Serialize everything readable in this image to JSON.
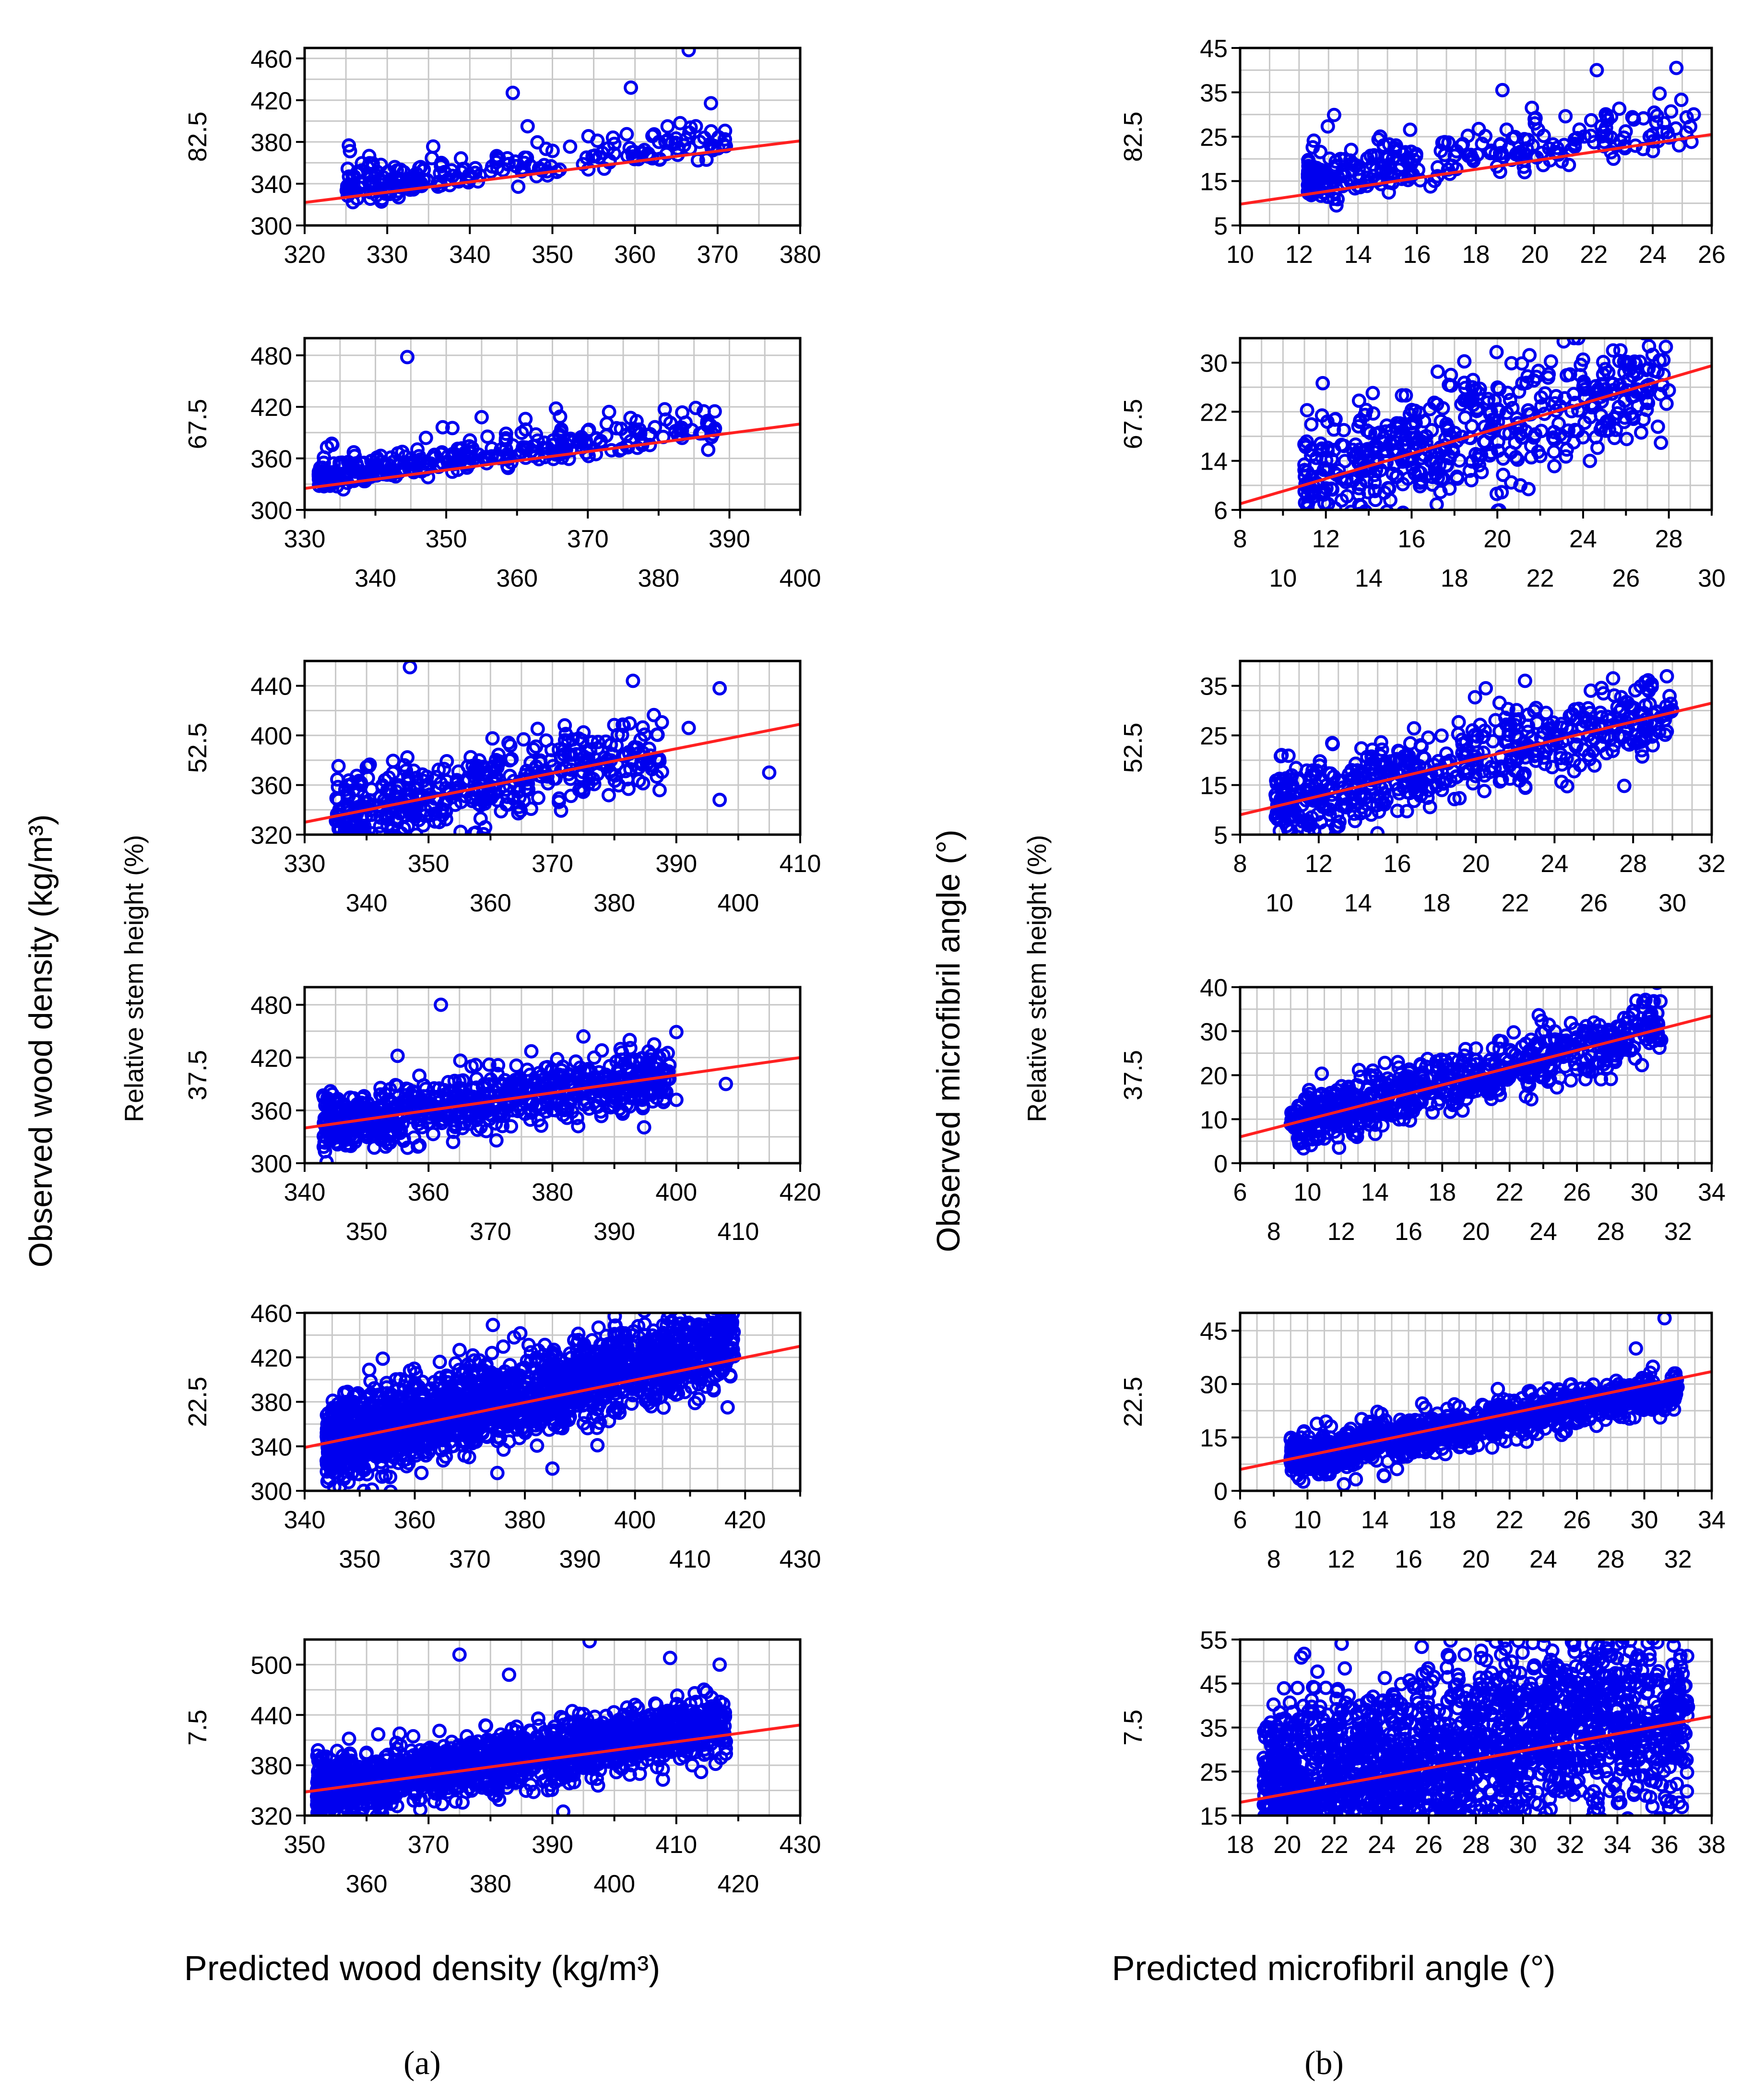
{
  "figure": {
    "panel_a_label": "(a)",
    "panel_b_label": "(b)",
    "y_title_a": "Observed wood density (kg/m³)",
    "y_title_b": "Observed microfibril angle (°)",
    "height_title_a": "Relative stem height (%)",
    "height_title_b": "Relative stem height (%)",
    "x_title_a": "Predicted wood density (kg/m³)",
    "x_title_b": "Predicted microfibril angle (°)"
  },
  "colors": {
    "points": "#0000ee",
    "fit_line": "#ff2020",
    "grid": "#c8c8c8"
  },
  "chart_data": [
    {
      "id": "a-82.5",
      "type": "scatter",
      "panel": "a",
      "stem_height": "82.5",
      "title": "",
      "xlabel": "Predicted wood density (kg/m3)",
      "ylabel": "Observed wood density (kg/m3)",
      "xlim": [
        320,
        380
      ],
      "ylim": [
        300,
        470
      ],
      "xticks_top": [
        320,
        330,
        340,
        350,
        360,
        370,
        380
      ],
      "xticks_bottom": [],
      "yticks": [
        300,
        340,
        380,
        420,
        460
      ],
      "fit_line": [
        [
          320,
          322
        ],
        [
          380,
          381
        ]
      ],
      "cloud": {
        "n": 230,
        "x": [
          325,
          371
        ],
        "mode": "sparse",
        "spread": 20,
        "seed": 11
      },
      "outliers": [
        [
          366.5,
          468
        ],
        [
          359.5,
          432
        ],
        [
          345.2,
          427
        ],
        [
          371,
          376
        ],
        [
          364,
          382
        ],
        [
          347,
          395
        ]
      ]
    },
    {
      "id": "b-82.5",
      "type": "scatter",
      "panel": "b",
      "stem_height": "82.5",
      "title": "",
      "xlabel": "Predicted microfibril angle (o)",
      "ylabel": "Observed microfibril angle (o)",
      "xlim": [
        10,
        26
      ],
      "ylim": [
        5,
        45
      ],
      "xticks_top": [
        10,
        12,
        14,
        16,
        18,
        20,
        22,
        24,
        26
      ],
      "xticks_bottom": [],
      "yticks": [
        5,
        15,
        25,
        35,
        45
      ],
      "fit_line": [
        [
          10,
          9.8
        ],
        [
          26,
          25.5
        ]
      ],
      "cloud": {
        "n": 280,
        "x": [
          12.3,
          25.5
        ],
        "mode": "sparse",
        "spread": 6,
        "seed": 12
      },
      "outliers": [
        [
          24.8,
          40.5
        ],
        [
          22.1,
          40
        ],
        [
          19.9,
          31.5
        ],
        [
          20,
          28
        ],
        [
          18.9,
          35.5
        ]
      ]
    },
    {
      "id": "a-67.5",
      "type": "scatter",
      "panel": "a",
      "stem_height": "67.5",
      "title": "",
      "xlabel": "Predicted wood density (kg/m3)",
      "ylabel": "Observed wood density (kg/m3)",
      "xlim": [
        330,
        400
      ],
      "ylim": [
        300,
        500
      ],
      "xticks_top": [
        330,
        350,
        370,
        390
      ],
      "xticks_bottom": [
        340,
        360,
        380,
        400
      ],
      "yticks": [
        300,
        360,
        420,
        480
      ],
      "fit_line": [
        [
          330,
          325
        ],
        [
          400,
          400
        ]
      ],
      "cloud": {
        "n": 330,
        "x": [
          332,
          388
        ],
        "mode": "sparse",
        "spread": 20,
        "seed": 21
      },
      "outliers": [
        [
          344.5,
          478
        ],
        [
          365.5,
          418
        ],
        [
          355,
          408
        ],
        [
          373,
          414
        ],
        [
          387,
          370
        ]
      ]
    },
    {
      "id": "b-67.5",
      "type": "scatter",
      "panel": "b",
      "stem_height": "67.5",
      "title": "",
      "xlabel": "Predicted microfibril angle (o)",
      "ylabel": "Observed microfibril angle (o)",
      "xlim": [
        8,
        30
      ],
      "ylim": [
        6,
        34
      ],
      "xticks_top": [
        8,
        12,
        16,
        20,
        24,
        28
      ],
      "xticks_bottom": [
        10,
        14,
        18,
        22,
        26,
        30
      ],
      "yticks": [
        6,
        14,
        22,
        30
      ],
      "fit_line": [
        [
          8,
          7
        ],
        [
          30,
          29.5
        ]
      ],
      "cloud": {
        "n": 520,
        "x": [
          11,
          28
        ],
        "mode": "medium",
        "spread": 7,
        "seed": 22
      },
      "outliers": [
        [
          25.4,
          32
        ],
        [
          24,
          30.5
        ],
        [
          22.5,
          30.2
        ],
        [
          27,
          26
        ],
        [
          28,
          25.5
        ]
      ]
    },
    {
      "id": "a-52.5",
      "type": "scatter",
      "panel": "a",
      "stem_height": "52.5",
      "title": "",
      "xlabel": "Predicted wood density (kg/m3)",
      "ylabel": "Observed wood density (kg/m3)",
      "xlim": [
        330,
        410
      ],
      "ylim": [
        320,
        460
      ],
      "xticks_top": [
        330,
        350,
        370,
        390,
        410
      ],
      "xticks_bottom": [
        340,
        360,
        380,
        400
      ],
      "yticks": [
        320,
        360,
        400,
        440
      ],
      "fit_line": [
        [
          330,
          330
        ],
        [
          410,
          409
        ]
      ],
      "cloud": {
        "n": 440,
        "x": [
          335,
          388
        ],
        "mode": "medium",
        "spread": 24,
        "seed": 31
      },
      "outliers": [
        [
          347,
          455
        ],
        [
          383,
          444
        ],
        [
          397,
          438
        ],
        [
          405,
          370
        ],
        [
          397,
          348
        ],
        [
          392,
          406
        ]
      ]
    },
    {
      "id": "b-52.5",
      "type": "scatter",
      "panel": "b",
      "stem_height": "52.5",
      "title": "",
      "xlabel": "Predicted microfibril angle (o)",
      "ylabel": "Observed microfibril angle (o)",
      "xlim": [
        8,
        32
      ],
      "ylim": [
        5,
        40
      ],
      "xticks_top": [
        8,
        12,
        16,
        20,
        24,
        28,
        32
      ],
      "xticks_bottom": [
        10,
        14,
        18,
        22,
        26,
        30
      ],
      "yticks": [
        5,
        15,
        25,
        35
      ],
      "fit_line": [
        [
          8,
          9
        ],
        [
          32,
          31.5
        ]
      ],
      "cloud": {
        "n": 540,
        "x": [
          9.8,
          30
        ],
        "mode": "medium",
        "spread": 6,
        "seed": 32
      },
      "outliers": [
        [
          22.5,
          36
        ],
        [
          20.5,
          34.5
        ],
        [
          28.8,
          34
        ],
        [
          29,
          23
        ]
      ]
    },
    {
      "id": "a-37.5",
      "type": "scatter",
      "panel": "a",
      "stem_height": "37.5",
      "title": "",
      "xlabel": "Predicted wood density (kg/m3)",
      "ylabel": "Observed wood density (kg/m3)",
      "xlim": [
        340,
        420
      ],
      "ylim": [
        300,
        500
      ],
      "xticks_top": [
        340,
        360,
        380,
        400,
        420
      ],
      "xticks_bottom": [
        350,
        370,
        390,
        410
      ],
      "yticks": [
        300,
        360,
        420,
        480
      ],
      "fit_line": [
        [
          340,
          340
        ],
        [
          420,
          420
        ]
      ],
      "cloud": {
        "n": 720,
        "x": [
          343,
          399
        ],
        "mode": "dense",
        "spread": 24,
        "seed": 41
      },
      "outliers": [
        [
          362,
          480
        ],
        [
          385,
          444
        ],
        [
          400,
          449
        ],
        [
          408,
          390
        ],
        [
          400,
          372
        ],
        [
          355,
          422
        ]
      ]
    },
    {
      "id": "b-37.5",
      "type": "scatter",
      "panel": "b",
      "stem_height": "37.5",
      "title": "",
      "xlabel": "Predicted microfibril angle (o)",
      "ylabel": "Observed microfibril angle (o)",
      "xlim": [
        6,
        34
      ],
      "ylim": [
        0,
        40
      ],
      "xticks_top": [
        6,
        10,
        14,
        18,
        22,
        26,
        30,
        34
      ],
      "xticks_bottom": [
        8,
        12,
        16,
        20,
        24,
        28,
        32
      ],
      "yticks": [
        0,
        10,
        20,
        30,
        40
      ],
      "fit_line": [
        [
          6,
          6
        ],
        [
          34,
          33.5
        ]
      ],
      "cloud": {
        "n": 700,
        "x": [
          9,
          31
        ],
        "mode": "dense",
        "spread": 5,
        "seed": 42
      },
      "outliers": [
        [
          30.5,
          30
        ],
        [
          29,
          28.5
        ],
        [
          31,
          28
        ],
        [
          27.5,
          28.5
        ]
      ]
    },
    {
      "id": "a-22.5",
      "type": "scatter",
      "panel": "a",
      "stem_height": "22.5",
      "title": "",
      "xlabel": "Predicted wood density (kg/m3)",
      "ylabel": "Observed wood density (kg/m3)",
      "xlim": [
        340,
        430
      ],
      "ylim": [
        300,
        460
      ],
      "xticks_top": [
        340,
        360,
        380,
        400,
        420
      ],
      "xticks_bottom": [
        350,
        370,
        390,
        410,
        430
      ],
      "yticks": [
        300,
        340,
        380,
        420,
        460
      ],
      "fit_line": [
        [
          340,
          339
        ],
        [
          430,
          430
        ]
      ],
      "cloud": {
        "n": 1900,
        "x": [
          344,
          418
        ],
        "mode": "band",
        "spread": 26,
        "seed": 51
      },
      "outliers": [
        [
          385,
          320
        ],
        [
          375,
          316
        ]
      ]
    },
    {
      "id": "b-22.5",
      "type": "scatter",
      "panel": "b",
      "stem_height": "22.5",
      "title": "",
      "xlabel": "Predicted microfibril angle (o)",
      "ylabel": "Observed microfibril angle (o)",
      "xlim": [
        6,
        34
      ],
      "ylim": [
        0,
        50
      ],
      "xticks_top": [
        6,
        10,
        14,
        18,
        22,
        26,
        30,
        34
      ],
      "xticks_bottom": [
        8,
        12,
        16,
        20,
        24,
        28,
        32
      ],
      "yticks": [
        0,
        15,
        30,
        45
      ],
      "fit_line": [
        [
          6,
          6
        ],
        [
          34,
          33.5
        ]
      ],
      "cloud": {
        "n": 1100,
        "x": [
          9,
          32
        ],
        "mode": "flat",
        "spread": 4,
        "seed": 52
      },
      "outliers": [
        [
          31.2,
          48.5
        ],
        [
          29.5,
          40
        ],
        [
          31.5,
          30
        ]
      ]
    },
    {
      "id": "a-7.5",
      "type": "scatter",
      "panel": "a",
      "stem_height": "7.5",
      "title": "",
      "xlabel": "Predicted wood density (kg/m3)",
      "ylabel": "Observed wood density (kg/m3)",
      "xlim": [
        350,
        430
      ],
      "ylim": [
        320,
        530
      ],
      "xticks_top": [
        350,
        370,
        390,
        410,
        430
      ],
      "xticks_bottom": [
        360,
        380,
        400,
        420
      ],
      "yticks": [
        320,
        380,
        440,
        500
      ],
      "fit_line": [
        [
          350,
          348
        ],
        [
          430,
          428
        ]
      ],
      "cloud": {
        "n": 1500,
        "x": [
          352,
          418
        ],
        "mode": "band",
        "spread": 26,
        "seed": 61
      },
      "outliers": [
        [
          396,
          528
        ],
        [
          375,
          512
        ],
        [
          409,
          508
        ],
        [
          417,
          500
        ],
        [
          383,
          488
        ],
        [
          414,
          372
        ]
      ]
    },
    {
      "id": "b-7.5",
      "type": "scatter",
      "panel": "b",
      "stem_height": "7.5",
      "title": "",
      "xlabel": "Predicted microfibril angle (o)",
      "ylabel": "Observed microfibril angle (o)",
      "xlim": [
        18,
        38
      ],
      "ylim": [
        15,
        55
      ],
      "xticks_top": [
        18,
        20,
        22,
        24,
        26,
        28,
        30,
        32,
        34,
        36,
        38
      ],
      "xticks_bottom": [],
      "yticks": [
        15,
        25,
        35,
        45,
        55
      ],
      "fit_line": [
        [
          18,
          18
        ],
        [
          38,
          37.5
        ]
      ],
      "cloud": {
        "n": 2100,
        "x": [
          19,
          37
        ],
        "mode": "wide",
        "spread": 10,
        "seed": 62
      },
      "outliers": [
        [
          33,
          20.5
        ],
        [
          30.5,
          18
        ],
        [
          29.5,
          50
        ]
      ]
    }
  ]
}
